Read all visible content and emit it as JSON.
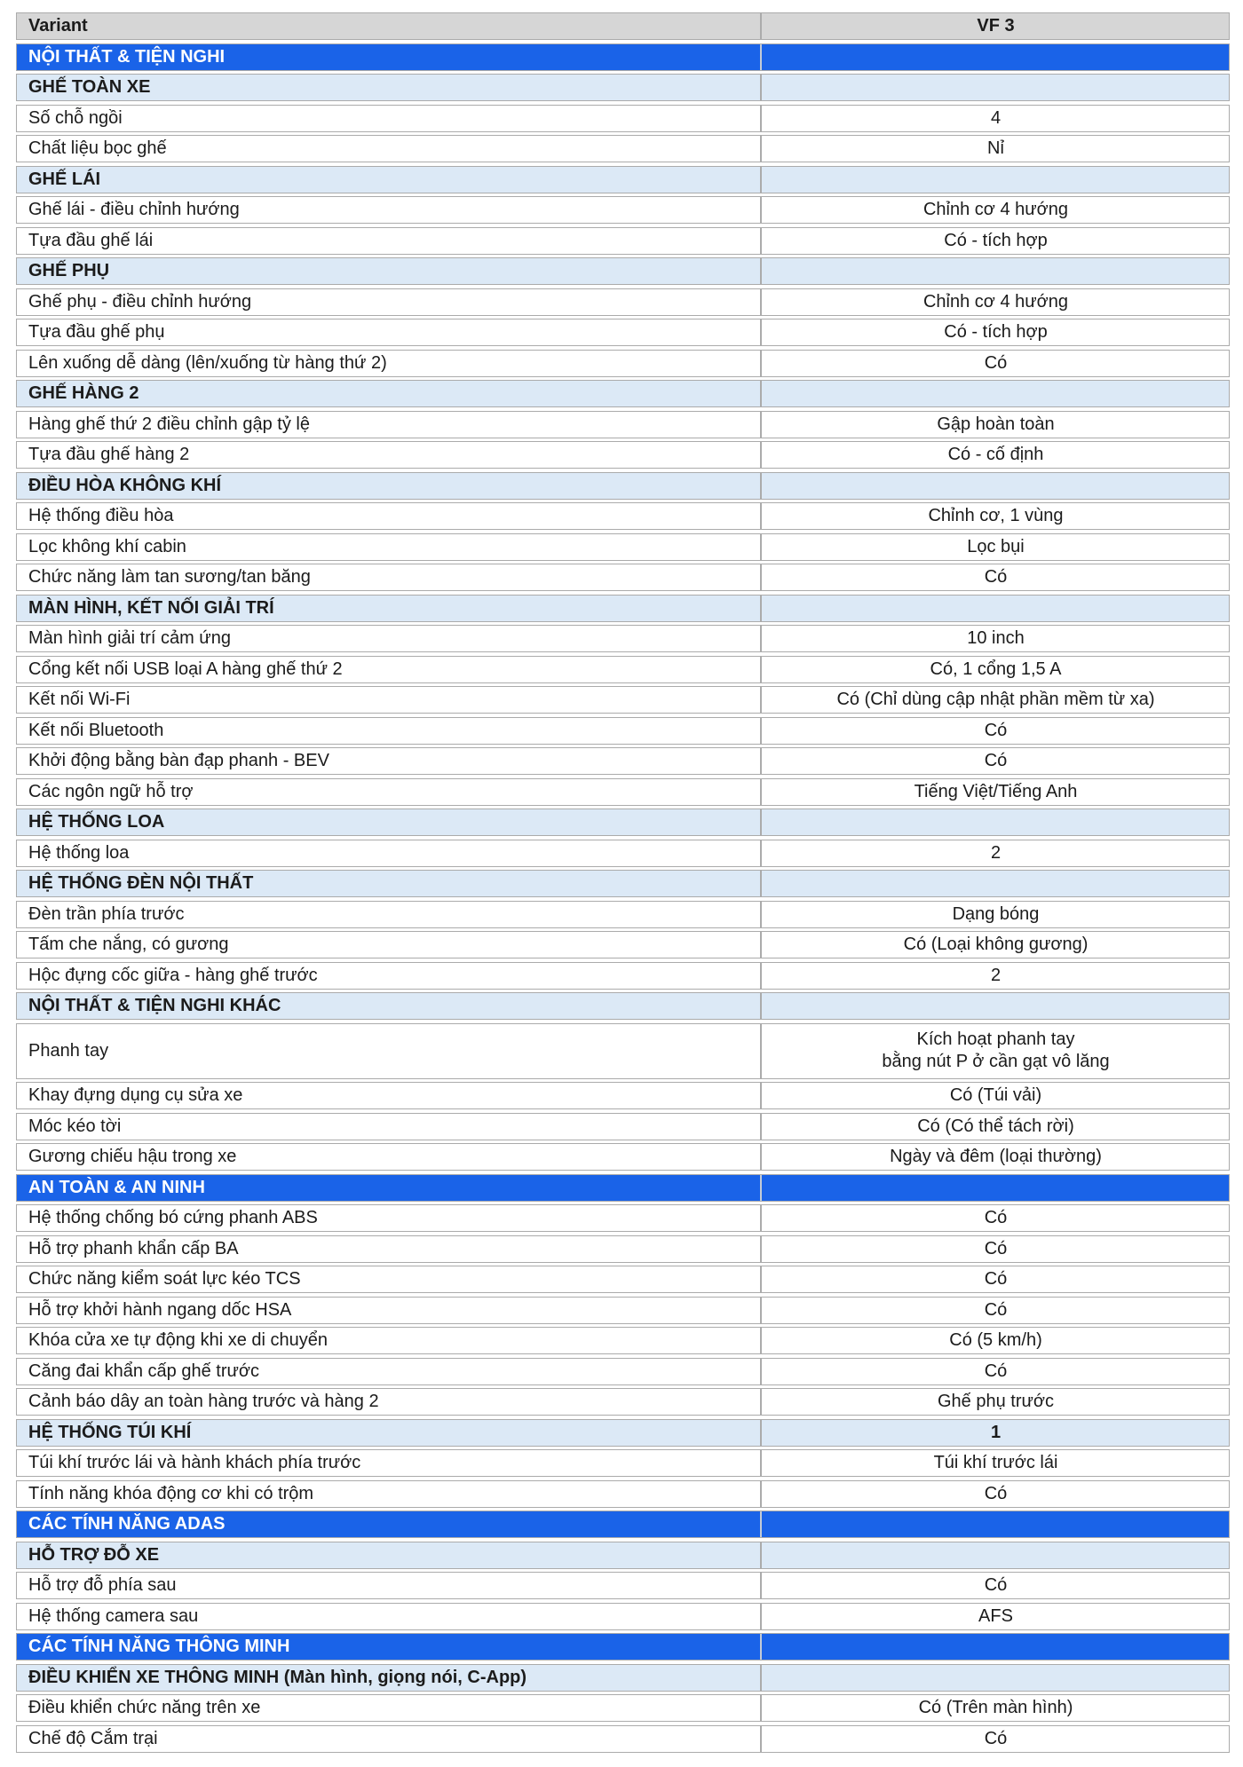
{
  "colors": {
    "section_bg": "#1A63E8",
    "section_text": "#ffffff",
    "subsection_bg": "#DCE9F6",
    "header_bg": "#D6D6D6",
    "border": "#ABABAB",
    "text": "#1b1b1b",
    "page_bg": "#ffffff"
  },
  "table": {
    "columns": [
      "Variant",
      "VF 3"
    ],
    "rows": [
      {
        "type": "section",
        "label": "NỘI THẤT & TIỆN NGHI",
        "value": ""
      },
      {
        "type": "subsection",
        "label": "GHẾ TOÀN XE",
        "value": ""
      },
      {
        "type": "data",
        "label": "Số chỗ ngồi",
        "value": "4"
      },
      {
        "type": "data",
        "label": "Chất liệu bọc ghế",
        "value": "Nỉ"
      },
      {
        "type": "subsection",
        "label": "GHẾ LÁI",
        "value": ""
      },
      {
        "type": "data",
        "label": "Ghế lái - điều chỉnh hướng",
        "value": "Chỉnh cơ 4 hướng"
      },
      {
        "type": "data",
        "label": "Tựa đầu ghế lái",
        "value": "Có - tích hợp"
      },
      {
        "type": "subsection",
        "label": "GHẾ PHỤ",
        "value": ""
      },
      {
        "type": "data",
        "label": "Ghế phụ - điều chỉnh hướng",
        "value": "Chỉnh cơ 4 hướng"
      },
      {
        "type": "data",
        "label": "Tựa đầu ghế phụ",
        "value": "Có - tích hợp"
      },
      {
        "type": "data",
        "label": "Lên xuống dễ dàng (lên/xuống từ hàng thứ 2)",
        "value": "Có"
      },
      {
        "type": "subsection",
        "label": "GHẾ HÀNG 2",
        "value": ""
      },
      {
        "type": "data",
        "label": "Hàng ghế thứ 2 điều chỉnh gập tỷ lệ",
        "value": "Gập hoàn toàn"
      },
      {
        "type": "data",
        "label": "Tựa đầu ghế hàng 2",
        "value": "Có - cố định"
      },
      {
        "type": "subsection",
        "label": "ĐIỀU HÒA KHÔNG KHÍ",
        "value": ""
      },
      {
        "type": "data",
        "label": "Hệ thống điều hòa",
        "value": "Chỉnh cơ, 1 vùng"
      },
      {
        "type": "data",
        "label": "Lọc không khí cabin",
        "value": "Lọc bụi"
      },
      {
        "type": "data",
        "label": "Chức năng làm tan sương/tan băng",
        "value": "Có"
      },
      {
        "type": "subsection",
        "label": "MÀN HÌNH, KẾT NỐI GIẢI TRÍ",
        "value": ""
      },
      {
        "type": "data",
        "label": "Màn hình giải trí cảm ứng",
        "value": "10 inch"
      },
      {
        "type": "data",
        "label": "Cổng kết nối USB loại A hàng ghế thứ 2",
        "value": "Có, 1 cổng 1,5 A"
      },
      {
        "type": "data",
        "label": "Kết nối Wi-Fi",
        "value": "Có (Chỉ dùng cập nhật phần mềm từ xa)"
      },
      {
        "type": "data",
        "label": "Kết nối Bluetooth",
        "value": "Có"
      },
      {
        "type": "data",
        "label": "Khởi động bằng bàn đạp phanh - BEV",
        "value": "Có"
      },
      {
        "type": "data",
        "label": "Các ngôn ngữ hỗ trợ",
        "value": "Tiếng Việt/Tiếng Anh"
      },
      {
        "type": "subsection",
        "label": "HỆ THỐNG LOA",
        "value": ""
      },
      {
        "type": "data",
        "label": "Hệ thống loa",
        "value": "2"
      },
      {
        "type": "subsection",
        "label": "HỆ THỐNG ĐÈN NỘI THẤT",
        "value": ""
      },
      {
        "type": "data",
        "label": "Đèn trần phía trước",
        "value": "Dạng bóng"
      },
      {
        "type": "data",
        "label": "Tấm che nắng, có gương",
        "value": "Có (Loại không gương)"
      },
      {
        "type": "data",
        "label": "Hộc đựng cốc giữa - hàng ghế trước",
        "value": "2"
      },
      {
        "type": "subsection",
        "label": "NỘI THẤT & TIỆN NGHI KHÁC",
        "value": ""
      },
      {
        "type": "data",
        "tall": true,
        "label": "Phanh tay",
        "value": "Kích hoạt phanh tay\nbằng nút P ở cần gạt vô lăng"
      },
      {
        "type": "data",
        "label": "Khay đựng dụng cụ sửa xe",
        "value": "Có (Túi vải)"
      },
      {
        "type": "data",
        "label": "Móc kéo tời",
        "value": "Có (Có thể tách rời)"
      },
      {
        "type": "data",
        "label": "Gương chiếu hậu trong xe",
        "value": "Ngày và đêm (loại thường)"
      },
      {
        "type": "section",
        "label": "AN TOÀN & AN NINH",
        "value": ""
      },
      {
        "type": "data",
        "label": "Hệ thống chống bó cứng phanh ABS",
        "value": "Có"
      },
      {
        "type": "data",
        "label": "Hỗ trợ phanh khẩn cấp BA",
        "value": "Có"
      },
      {
        "type": "data",
        "label": "Chức năng kiểm soát lực kéo TCS",
        "value": "Có"
      },
      {
        "type": "data",
        "label": "Hỗ trợ khởi hành ngang dốc HSA",
        "value": "Có"
      },
      {
        "type": "data",
        "label": "Khóa cửa xe tự động khi xe di chuyển",
        "value": "Có (5 km/h)"
      },
      {
        "type": "data",
        "label": "Căng đai khẩn cấp ghế trước",
        "value": "Có"
      },
      {
        "type": "data",
        "label": "Cảnh báo dây an toàn hàng trước và hàng 2",
        "value": "Ghế phụ trước"
      },
      {
        "type": "subsection",
        "label": "HỆ THỐNG TÚI KHÍ",
        "value": "1"
      },
      {
        "type": "data",
        "label": "Túi khí trước lái và hành khách phía trước",
        "value": "Túi khí trước lái"
      },
      {
        "type": "data",
        "label": "Tính năng khóa động cơ khi có trộm",
        "value": "Có"
      },
      {
        "type": "section",
        "label": "CÁC TÍNH NĂNG ADAS",
        "value": ""
      },
      {
        "type": "subsection",
        "label": "HỖ TRỢ ĐỖ XE",
        "value": ""
      },
      {
        "type": "data",
        "label": "Hỗ trợ đỗ phía sau",
        "value": "Có"
      },
      {
        "type": "data",
        "label": "Hệ thống camera sau",
        "value": "AFS"
      },
      {
        "type": "section",
        "label": "CÁC TÍNH NĂNG THÔNG MINH",
        "value": ""
      },
      {
        "type": "subsection",
        "label": "ĐIỀU KHIỂN XE THÔNG MINH (Màn hình, giọng nói, C-App)",
        "value": ""
      },
      {
        "type": "data",
        "label": "Điều khiển chức năng trên xe",
        "value": "Có (Trên màn hình)"
      },
      {
        "type": "data",
        "label": "Chế độ Cắm trại",
        "value": "Có"
      }
    ]
  }
}
